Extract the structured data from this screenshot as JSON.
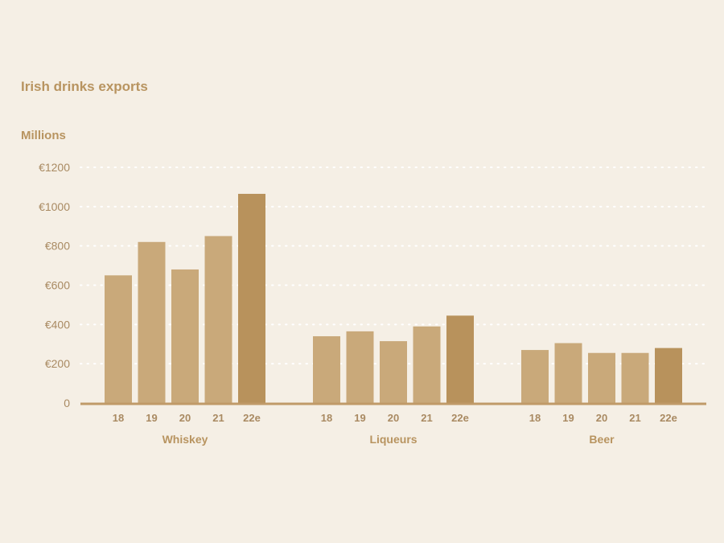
{
  "chart_data": {
    "type": "bar",
    "title": "Irish drinks exports",
    "unit_label": "Millions",
    "yticks": [
      "0",
      "€200",
      "€400",
      "€600",
      "€800",
      "€1000",
      "€1200"
    ],
    "ylim": [
      0,
      1200
    ],
    "grid": true,
    "categories": [
      "18",
      "19",
      "20",
      "21",
      "22e"
    ],
    "groups": [
      {
        "name": "Whiskey",
        "values": [
          650,
          820,
          680,
          850,
          1065
        ]
      },
      {
        "name": "Liqueurs",
        "values": [
          340,
          365,
          315,
          390,
          445
        ]
      },
      {
        "name": "Beer",
        "values": [
          270,
          305,
          255,
          255,
          280
        ]
      }
    ],
    "colors": {
      "bar": "#c9a97a",
      "bar_estimate": "#b8925c",
      "axis": "#c09a68",
      "grid": "#ffffff"
    }
  }
}
